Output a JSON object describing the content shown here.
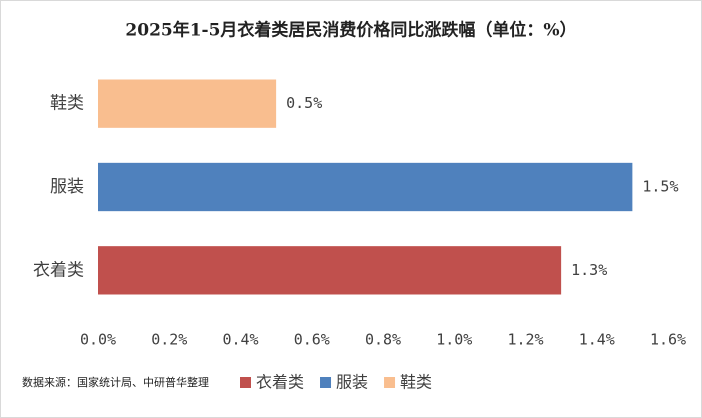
{
  "chart_data": {
    "type": "bar",
    "orientation": "horizontal",
    "title": "2025年1-5月衣着类居民消费价格同比涨跌幅（单位：%）",
    "categories": [
      "衣着类",
      "服装",
      "鞋类"
    ],
    "values": [
      1.3,
      1.5,
      0.5
    ],
    "value_labels": [
      "1.3%",
      "1.5%",
      "0.5%"
    ],
    "colors": [
      "#c0504d",
      "#4f81bd",
      "#f9be8f"
    ],
    "xlim": [
      0,
      1.6
    ],
    "xticks": [
      {
        "value": 0,
        "label": "0.0%"
      },
      {
        "value": 0.2,
        "label": "0.2%"
      },
      {
        "value": 0.4,
        "label": "0.4%"
      },
      {
        "value": 0.6,
        "label": "0.6%"
      },
      {
        "value": 0.8,
        "label": "0.8%"
      },
      {
        "value": 1.0,
        "label": "1.0%"
      },
      {
        "value": 1.2,
        "label": "1.2%"
      },
      {
        "value": 1.4,
        "label": "1.4%"
      },
      {
        "value": 1.6,
        "label": "1.6%"
      }
    ],
    "grid": false,
    "legend": "bottom",
    "source": "数据来源：国家统计局、中研普华整理"
  }
}
